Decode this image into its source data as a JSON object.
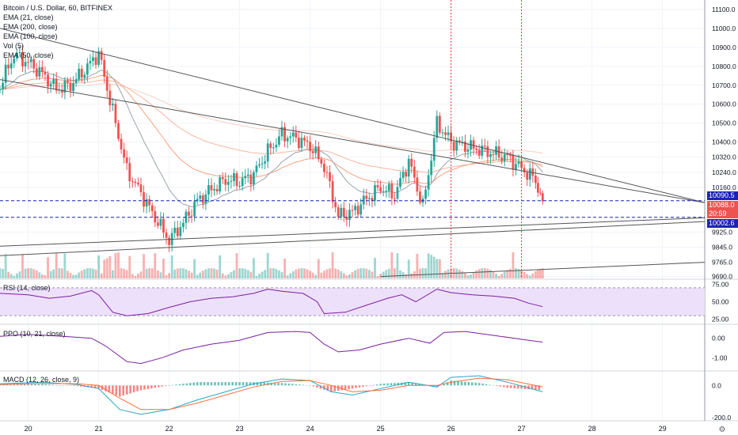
{
  "header": {
    "symbol_line": "Bitcoin / U.S. Dollar, 60, BITFINEX",
    "indicators": [
      "EMA (21, close)",
      "EMA (200, close)",
      "EMA (100, close)",
      "Vol (5)",
      "EMA (50, close)"
    ]
  },
  "panes": {
    "rsi_label": "RSI (14, close)",
    "ppo_label": "PPO (10, 21, close)",
    "macd_label": "MACD (12, 26, close, 9)"
  },
  "price_tags": [
    {
      "text": "10090.5",
      "color": "#1a23b8"
    },
    {
      "text": "10088.0",
      "color": "#ef5350"
    },
    {
      "text": "20:59",
      "color": "#ef5350"
    },
    {
      "text": "10002.6",
      "color": "#1a23b8"
    }
  ],
  "colors": {
    "up": "#26a69a",
    "down": "#ef5350",
    "rsi_line": "#7b1fa2",
    "rsi_band": "#ede0fb",
    "ppo_line": "#7b1fa2",
    "macd_line": "#26a6c4",
    "signal_line": "#ff6d3b",
    "ema21": "#9ca3ac",
    "ema50": "#f7a17f",
    "ema100": "#f8b6a0",
    "ema200": "#f5cfc2",
    "trendline": "#555555",
    "dashed": "#1a23b8",
    "vline": "#e53935"
  },
  "chart_data": [
    {
      "type": "candlestick",
      "title": "Bitcoin / U.S. Dollar, 60, BITFINEX",
      "x_ticks": [
        "20",
        "21",
        "22",
        "23",
        "24",
        "25",
        "26",
        "27",
        "28",
        "29"
      ],
      "y_ticks": [
        9690.0,
        9765.0,
        9845.0,
        9925.0,
        10002.6,
        10088.0,
        10160.0,
        10240.0,
        10320.0,
        10400.0,
        10500.0,
        10600.0,
        10700.0,
        10800.0,
        10900.0,
        11000.0,
        11100.0
      ],
      "y_tick_labels": [
        "9690.0",
        "9765.0",
        "9845.0",
        "9925.0",
        "",
        "",
        "10160.0",
        "10240.0",
        "10320.0",
        "10400.0",
        "10500.0",
        "10600.0",
        "10700.0",
        "10800.0",
        "10900.0",
        "11000.0",
        "11100.0"
      ],
      "xlim": [
        19.6,
        29.6
      ],
      "ylim": [
        9680,
        11150
      ],
      "close_points": [
        [
          19.6,
          10700
        ],
        [
          19.8,
          10860
        ],
        [
          20.0,
          10820
        ],
        [
          20.2,
          10760
        ],
        [
          20.4,
          10680
        ],
        [
          20.6,
          10700
        ],
        [
          20.8,
          10780
        ],
        [
          21.0,
          10870
        ],
        [
          21.2,
          10560
        ],
        [
          21.4,
          10250
        ],
        [
          21.6,
          10130
        ],
        [
          21.8,
          10000
        ],
        [
          22.0,
          9880
        ],
        [
          22.2,
          9975
        ],
        [
          22.4,
          10090
        ],
        [
          22.6,
          10150
        ],
        [
          22.8,
          10200
        ],
        [
          23.0,
          10190
        ],
        [
          23.2,
          10230
        ],
        [
          23.4,
          10350
        ],
        [
          23.6,
          10440
        ],
        [
          23.8,
          10420
        ],
        [
          24.0,
          10380
        ],
        [
          24.2,
          10270
        ],
        [
          24.4,
          10010
        ],
        [
          24.6,
          10030
        ],
        [
          24.8,
          10100
        ],
        [
          25.0,
          10160
        ],
        [
          25.2,
          10120
        ],
        [
          25.4,
          10300
        ],
        [
          25.6,
          10060
        ],
        [
          25.8,
          10500
        ],
        [
          26.0,
          10400
        ],
        [
          26.2,
          10380
        ],
        [
          26.4,
          10360
        ],
        [
          26.6,
          10340
        ],
        [
          26.8,
          10320
        ],
        [
          27.0,
          10260
        ],
        [
          27.2,
          10200
        ],
        [
          27.3,
          10088
        ]
      ],
      "current_price": 10088.0,
      "marked_levels": [
        10090.5,
        10002.6
      ]
    },
    {
      "type": "line",
      "title": "RSI (14, close)",
      "y_ticks": [
        25.0,
        50.0,
        75.0
      ],
      "y_tick_labels": [
        "25.00",
        "50.00",
        "75.00"
      ],
      "ylim": [
        20,
        80
      ],
      "band": [
        30,
        70
      ],
      "values": [
        [
          19.6,
          62
        ],
        [
          20.0,
          60
        ],
        [
          20.3,
          55
        ],
        [
          20.6,
          58
        ],
        [
          20.9,
          66
        ],
        [
          21.0,
          60
        ],
        [
          21.2,
          35
        ],
        [
          21.4,
          30
        ],
        [
          21.7,
          33
        ],
        [
          22.0,
          42
        ],
        [
          22.3,
          50
        ],
        [
          22.6,
          55
        ],
        [
          22.9,
          57
        ],
        [
          23.2,
          62
        ],
        [
          23.4,
          68
        ],
        [
          23.6,
          65
        ],
        [
          23.9,
          62
        ],
        [
          24.1,
          50
        ],
        [
          24.2,
          33
        ],
        [
          24.5,
          35
        ],
        [
          24.8,
          45
        ],
        [
          25.1,
          55
        ],
        [
          25.3,
          60
        ],
        [
          25.5,
          50
        ],
        [
          25.8,
          68
        ],
        [
          26.0,
          63
        ],
        [
          26.3,
          60
        ],
        [
          26.6,
          58
        ],
        [
          26.9,
          55
        ],
        [
          27.1,
          48
        ],
        [
          27.3,
          43
        ]
      ]
    },
    {
      "type": "line",
      "title": "PPO (10, 21, close)",
      "y_ticks": [
        0.0,
        -1.0
      ],
      "y_tick_labels": [
        "0.00",
        "-1.00"
      ],
      "ylim": [
        -1.6,
        0.6
      ],
      "values": [
        [
          19.6,
          0.1
        ],
        [
          20.0,
          0.2
        ],
        [
          20.5,
          0.1
        ],
        [
          20.9,
          0.0
        ],
        [
          21.1,
          -0.4
        ],
        [
          21.4,
          -1.2
        ],
        [
          21.6,
          -1.3
        ],
        [
          21.9,
          -1.0
        ],
        [
          22.2,
          -0.6
        ],
        [
          22.6,
          -0.3
        ],
        [
          23.0,
          -0.1
        ],
        [
          23.4,
          0.3
        ],
        [
          23.8,
          0.35
        ],
        [
          24.0,
          0.3
        ],
        [
          24.2,
          -0.3
        ],
        [
          24.4,
          -0.7
        ],
        [
          24.7,
          -0.6
        ],
        [
          25.0,
          -0.3
        ],
        [
          25.4,
          0.0
        ],
        [
          25.7,
          -0.25
        ],
        [
          25.9,
          0.3
        ],
        [
          26.2,
          0.35
        ],
        [
          26.6,
          0.15
        ],
        [
          27.0,
          -0.05
        ],
        [
          27.3,
          -0.2
        ]
      ]
    },
    {
      "type": "line",
      "title": "MACD (12, 26, close, 9)",
      "y_ticks": [
        0.0,
        -200.0
      ],
      "y_tick_labels": [
        "0.0",
        "-200.0"
      ],
      "ylim": [
        -220,
        80
      ],
      "macd": [
        [
          19.6,
          10
        ],
        [
          20.2,
          20
        ],
        [
          20.7,
          5
        ],
        [
          21.0,
          -20
        ],
        [
          21.3,
          -150
        ],
        [
          21.6,
          -180
        ],
        [
          22.0,
          -150
        ],
        [
          22.4,
          -90
        ],
        [
          22.8,
          -40
        ],
        [
          23.2,
          10
        ],
        [
          23.6,
          40
        ],
        [
          24.0,
          30
        ],
        [
          24.3,
          -40
        ],
        [
          24.6,
          -60
        ],
        [
          25.0,
          -20
        ],
        [
          25.4,
          20
        ],
        [
          25.8,
          -10
        ],
        [
          26.0,
          50
        ],
        [
          26.4,
          60
        ],
        [
          26.8,
          20
        ],
        [
          27.3,
          -40
        ]
      ],
      "signal": [
        [
          19.6,
          5
        ],
        [
          20.2,
          12
        ],
        [
          20.7,
          10
        ],
        [
          21.0,
          0
        ],
        [
          21.3,
          -80
        ],
        [
          21.6,
          -150
        ],
        [
          22.0,
          -150
        ],
        [
          22.4,
          -110
        ],
        [
          22.8,
          -60
        ],
        [
          23.2,
          -10
        ],
        [
          23.6,
          25
        ],
        [
          24.0,
          30
        ],
        [
          24.3,
          0
        ],
        [
          24.6,
          -40
        ],
        [
          25.0,
          -30
        ],
        [
          25.4,
          0
        ],
        [
          25.8,
          0
        ],
        [
          26.0,
          20
        ],
        [
          26.4,
          45
        ],
        [
          26.8,
          35
        ],
        [
          27.3,
          -10
        ]
      ]
    }
  ]
}
